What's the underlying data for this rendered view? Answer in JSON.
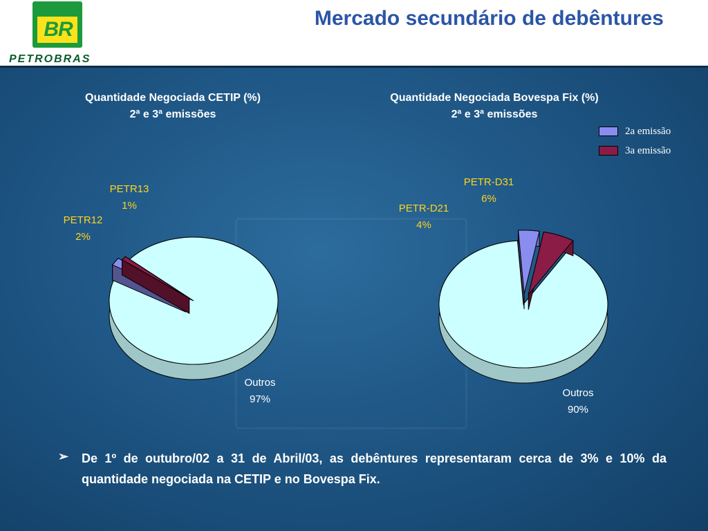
{
  "header": {
    "logo_text": "BR",
    "brand_name": "PETROBRAS",
    "title": "Mercado secundário de debêntures"
  },
  "colors": {
    "emissao2": "#8a8df0",
    "emissao3": "#8a1c45",
    "outros": "#ccffff",
    "label": "#ffd41a"
  },
  "legend": {
    "items": [
      {
        "label": "2a emissão",
        "color": "#8a8df0"
      },
      {
        "label": "3a emissão",
        "color": "#8a1c45"
      }
    ]
  },
  "chart_data": [
    {
      "type": "pie",
      "title": "Quantidade Negociada CETIP (%)",
      "subtitle": "2ª e 3ª emissões",
      "slices": [
        {
          "label": "Outros",
          "value": 97,
          "value_label": "97%"
        },
        {
          "label": "PETR12",
          "value": 2,
          "value_label": "2%"
        },
        {
          "label": "PETR13",
          "value": 1,
          "value_label": "1%"
        }
      ]
    },
    {
      "type": "pie",
      "title": "Quantidade Negociada Bovespa Fix (%)",
      "subtitle": "2ª e 3ª emissões",
      "slices": [
        {
          "label": "Outros",
          "value": 90,
          "value_label": "90%"
        },
        {
          "label": "PETR-D21",
          "value": 4,
          "value_label": "4%"
        },
        {
          "label": "PETR-D31",
          "value": 6,
          "value_label": "6%"
        }
      ]
    }
  ],
  "note": {
    "bullet": "➢",
    "text": "De 1º de outubro/02 a 31 de Abril/03, as debêntures representaram cerca de 3% e 10% da quantidade negociada na CETIP e no Bovespa Fix."
  }
}
